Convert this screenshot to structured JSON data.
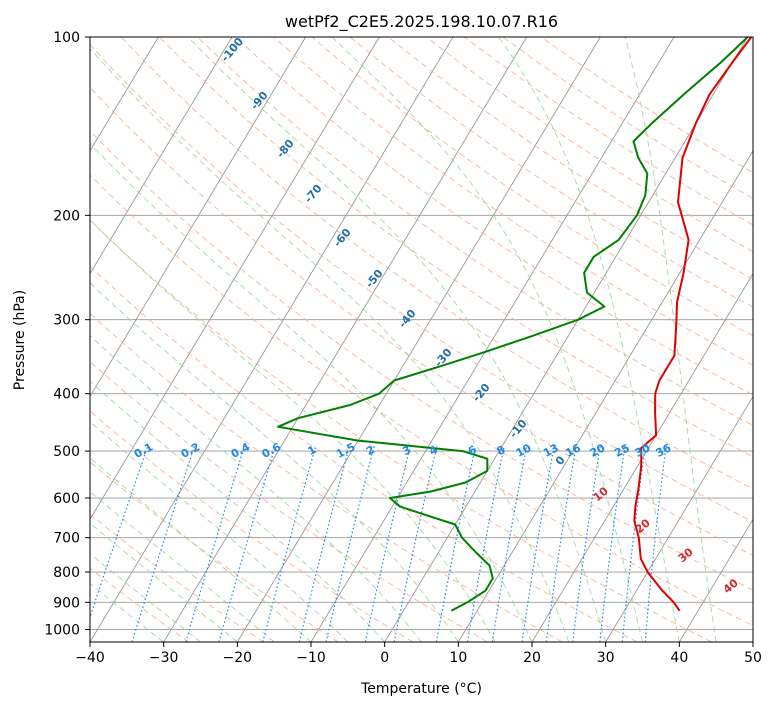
{
  "chart_data": {
    "type": "line",
    "subtype": "skew-T log-P diagram",
    "title": "wetPf2_C2E5.2025.198.10.07.R16",
    "xlabel": "Temperature (°C)",
    "ylabel": "Pressure (hPa)",
    "xlim": [
      -40,
      50
    ],
    "ylim": [
      1050,
      100
    ],
    "yscale": "log",
    "x_ticks": [
      "−40",
      "−30",
      "−20",
      "−10",
      "0",
      "10",
      "20",
      "30",
      "40",
      "50"
    ],
    "y_ticks": [
      "100",
      "200",
      "300",
      "400",
      "500",
      "600",
      "700",
      "800",
      "900",
      "1000"
    ],
    "grid": true,
    "series": [
      {
        "role": "temperature",
        "color": "#e00000",
        "points": [
          [
            37.5,
            930
          ],
          [
            36,
            900
          ],
          [
            33.5,
            860
          ],
          [
            30,
            800
          ],
          [
            28,
            760
          ],
          [
            26,
            700
          ],
          [
            24,
            655
          ],
          [
            23,
            620
          ],
          [
            22,
            580
          ],
          [
            20.5,
            530
          ],
          [
            19.5,
            505
          ],
          [
            19,
            495
          ],
          [
            20,
            470
          ],
          [
            18,
            430
          ],
          [
            16.5,
            400
          ],
          [
            16,
            380
          ],
          [
            16,
            345
          ],
          [
            14,
            310
          ],
          [
            12,
            280
          ],
          [
            10.5,
            250
          ],
          [
            8.5,
            220
          ],
          [
            4,
            190
          ],
          [
            1,
            160
          ],
          [
            0,
            140
          ],
          [
            -0.5,
            125
          ],
          [
            0,
            110
          ],
          [
            0.5,
            100
          ]
        ]
      },
      {
        "role": "dewpoint",
        "color": "#008000",
        "points": [
          [
            6.5,
            930
          ],
          [
            8,
            900
          ],
          [
            9.5,
            860
          ],
          [
            9.5,
            820
          ],
          [
            8,
            780
          ],
          [
            5,
            740
          ],
          [
            2,
            700
          ],
          [
            0,
            665
          ],
          [
            -5,
            640
          ],
          [
            -9,
            620
          ],
          [
            -11,
            600
          ],
          [
            -6,
            585
          ],
          [
            -2,
            565
          ],
          [
            0,
            540
          ],
          [
            -1,
            515
          ],
          [
            -5,
            500
          ],
          [
            -20,
            480
          ],
          [
            -32,
            455
          ],
          [
            -30,
            440
          ],
          [
            -24,
            418
          ],
          [
            -21,
            400
          ],
          [
            -20,
            380
          ],
          [
            -15,
            360
          ],
          [
            -10,
            340
          ],
          [
            -5,
            320
          ],
          [
            0,
            300
          ],
          [
            2.5,
            285
          ],
          [
            -1,
            270
          ],
          [
            -3,
            250
          ],
          [
            -3,
            235
          ],
          [
            -1,
            220
          ],
          [
            -0.5,
            200
          ],
          [
            -1,
            185
          ],
          [
            -2.5,
            170
          ],
          [
            -5,
            160
          ],
          [
            -7,
            150
          ],
          [
            -6,
            140
          ],
          [
            -4,
            125
          ],
          [
            -1.5,
            110
          ],
          [
            0,
            100
          ]
        ]
      }
    ],
    "background_lines": [
      "isotherms",
      "dry adiabats",
      "moist adiabats",
      "mixing ratio lines"
    ],
    "annotations": {
      "mixing_ratio_labels": [
        "0.1",
        "0.2",
        "0.4",
        "0.6",
        "1",
        "1.5",
        "2",
        "3",
        "4",
        "6",
        "8",
        "10",
        "13",
        "16",
        "20",
        "25",
        "30",
        "36"
      ],
      "moist_adiabat_labels": [
        "-100",
        "-90",
        "-80",
        "-70",
        "-60",
        "-50",
        "-40",
        "-30",
        "-20",
        "-10",
        "0"
      ],
      "dry_adiabat_labels": [
        "10",
        "20",
        "30",
        "40"
      ]
    },
    "colors": {
      "isotherm": "#999999",
      "dry_adiabat": "#f4a582",
      "moist_adiabat": "#8fcf8f",
      "mixing_ratio": "#1e88e5",
      "isobar": "#999999"
    }
  }
}
